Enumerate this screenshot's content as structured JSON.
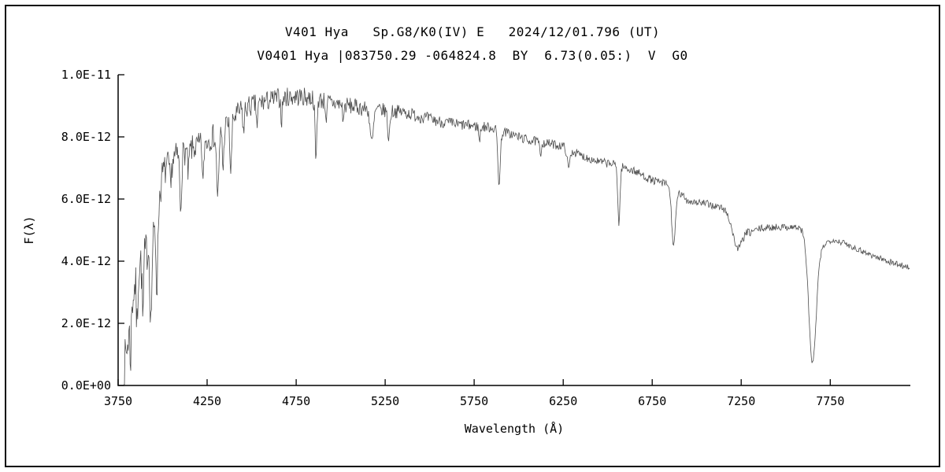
{
  "header": {
    "title_line1": "V401 Hya   Sp.G8/K0(IV) E   2024/12/01.796 (UT)",
    "title_line2": "V0401 Hya |083750.29 -064824.8  BY  6.73(0.05:)  V  G0"
  },
  "chart_data": {
    "type": "line",
    "title": "Optical spectrum of V401 Hya, flux F(lambda) vs wavelength",
    "xlabel": "Wavelength (Å)",
    "ylabel": "F(λ)",
    "xlim": [
      3750,
      8200
    ],
    "ylim": [
      0,
      1e-11
    ],
    "grid": false,
    "legend": null,
    "xticks": [
      3750,
      4250,
      4750,
      5250,
      5750,
      6250,
      6750,
      7250,
      7750
    ],
    "yticks": [
      {
        "u": 0,
        "label": "0.0E+00"
      },
      {
        "u": 2,
        "label": "2.0E-12"
      },
      {
        "u": 4,
        "label": "4.0E-12"
      },
      {
        "u": 6,
        "label": "6.0E-12"
      },
      {
        "u": 8,
        "label": "8.0E-12"
      },
      {
        "u": 10,
        "label": "1.0E-11"
      }
    ],
    "colors": {
      "line": "#4d4d4d",
      "axis": "#000000",
      "background": "#ffffff"
    },
    "series_units": "flux values below are in units of 1e-12 (y axis spans 0 to 10 in these units)",
    "spectrum": {
      "x_start": 3782,
      "x_end": 8195,
      "samples": 1250,
      "seed": 7,
      "envelope": [
        [
          3782,
          0.35
        ],
        [
          3800,
          1.2
        ],
        [
          3830,
          2.8
        ],
        [
          3860,
          3.8
        ],
        [
          3900,
          4.2
        ],
        [
          3950,
          4.8
        ],
        [
          4000,
          6.8
        ],
        [
          4060,
          7.3
        ],
        [
          4120,
          7.5
        ],
        [
          4200,
          7.7
        ],
        [
          4280,
          8.0
        ],
        [
          4360,
          8.4
        ],
        [
          4450,
          8.9
        ],
        [
          4550,
          9.1
        ],
        [
          4650,
          9.25
        ],
        [
          4750,
          9.3
        ],
        [
          4850,
          9.25
        ],
        [
          4950,
          9.1
        ],
        [
          5050,
          9.0
        ],
        [
          5150,
          8.9
        ],
        [
          5250,
          8.85
        ],
        [
          5350,
          8.8
        ],
        [
          5450,
          8.65
        ],
        [
          5550,
          8.5
        ],
        [
          5650,
          8.4
        ],
        [
          5750,
          8.35
        ],
        [
          5850,
          8.3
        ],
        [
          5950,
          8.1
        ],
        [
          6050,
          7.9
        ],
        [
          6150,
          7.8
        ],
        [
          6250,
          7.7
        ],
        [
          6350,
          7.4
        ],
        [
          6450,
          7.2
        ],
        [
          6550,
          7.1
        ],
        [
          6650,
          6.9
        ],
        [
          6750,
          6.6
        ],
        [
          6850,
          6.45
        ],
        [
          6950,
          5.95
        ],
        [
          7050,
          5.85
        ],
        [
          7150,
          5.7
        ],
        [
          7250,
          5.35
        ],
        [
          7300,
          4.95
        ],
        [
          7360,
          5.05
        ],
        [
          7450,
          5.1
        ],
        [
          7550,
          5.1
        ],
        [
          7620,
          5.0
        ],
        [
          7700,
          4.5
        ],
        [
          7760,
          4.7
        ],
        [
          7820,
          4.6
        ],
        [
          7900,
          4.4
        ],
        [
          8000,
          4.15
        ],
        [
          8100,
          3.95
        ],
        [
          8195,
          3.8
        ]
      ],
      "absorption_features": [
        [
          3820,
          1.3,
          4
        ],
        [
          3856,
          1.8,
          4
        ],
        [
          3889,
          2.0,
          4
        ],
        [
          3934,
          2.6,
          5
        ],
        [
          3968,
          2.3,
          5
        ],
        [
          4045,
          1.0,
          4
        ],
        [
          4101,
          1.7,
          5
        ],
        [
          4144,
          0.8,
          4
        ],
        [
          4227,
          1.4,
          4
        ],
        [
          4310,
          2.0,
          7
        ],
        [
          4340,
          1.4,
          4
        ],
        [
          4383,
          1.7,
          5
        ],
        [
          4455,
          0.8,
          4
        ],
        [
          4531,
          0.7,
          4
        ],
        [
          4668,
          0.7,
          4
        ],
        [
          4861,
          2.0,
          5
        ],
        [
          4920,
          0.6,
          4
        ],
        [
          5015,
          0.5,
          4
        ],
        [
          5175,
          1.1,
          9
        ],
        [
          5270,
          0.9,
          6
        ],
        [
          5780,
          0.5,
          4
        ],
        [
          5890,
          1.7,
          7
        ],
        [
          6122,
          0.5,
          4
        ],
        [
          6280,
          0.6,
          8
        ],
        [
          6563,
          1.9,
          6
        ],
        [
          6870,
          1.8,
          11
        ],
        [
          7230,
          1.0,
          28
        ],
        [
          7650,
          4.1,
          21
        ]
      ],
      "noise_amplitude": [
        [
          3782,
          0.85
        ],
        [
          3860,
          0.8
        ],
        [
          3950,
          0.6
        ],
        [
          4100,
          0.45
        ],
        [
          4300,
          0.4
        ],
        [
          4600,
          0.33
        ],
        [
          4900,
          0.3
        ],
        [
          5300,
          0.22
        ],
        [
          5800,
          0.17
        ],
        [
          6300,
          0.14
        ],
        [
          6800,
          0.13
        ],
        [
          7300,
          0.12
        ],
        [
          7700,
          0.1
        ],
        [
          8195,
          0.1
        ]
      ]
    }
  }
}
